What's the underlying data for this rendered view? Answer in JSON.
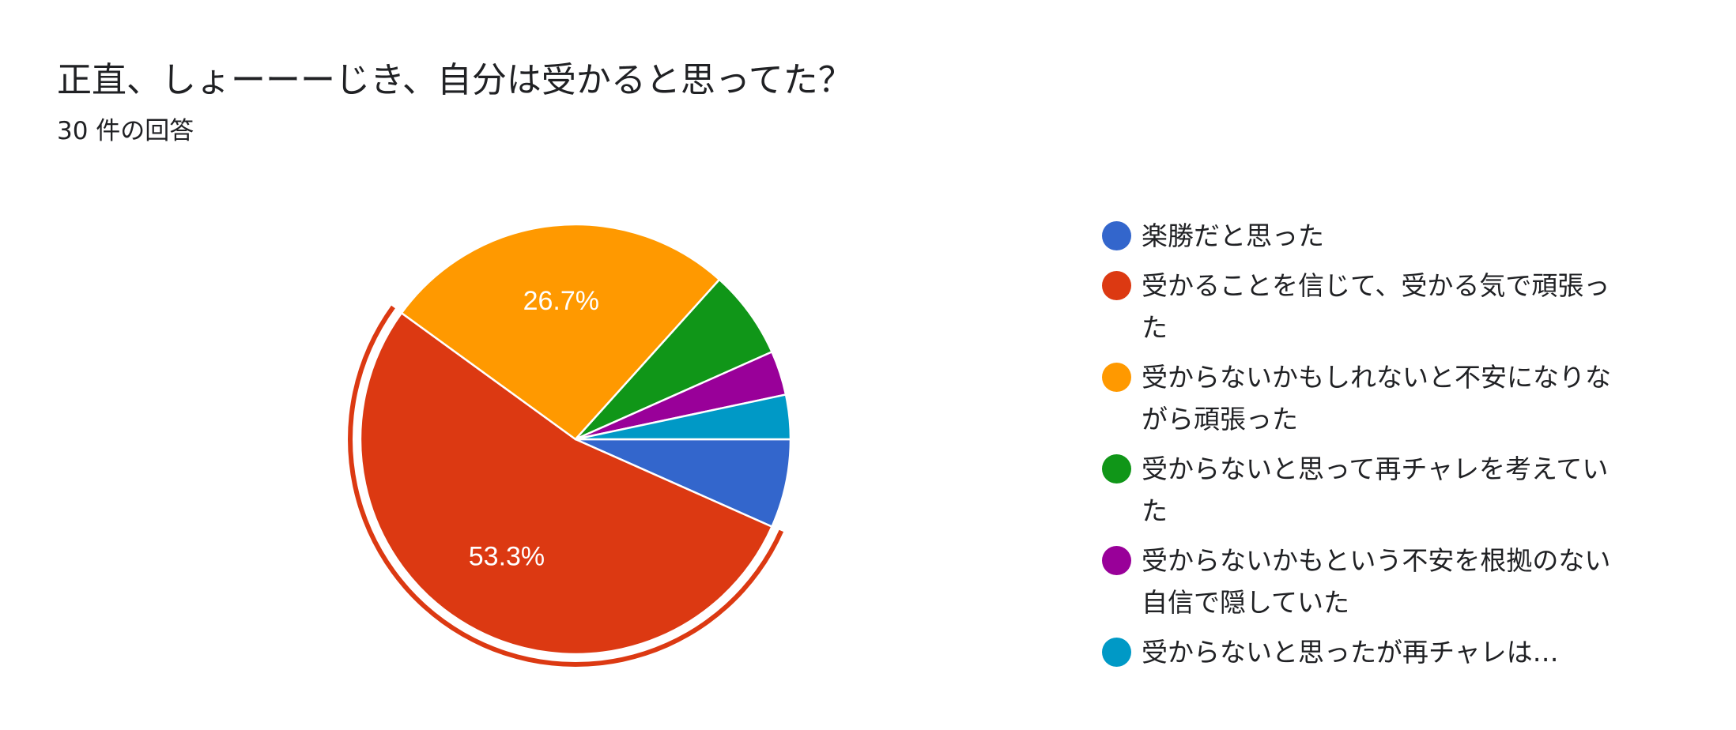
{
  "header": {
    "title": "正直、しょーーーじき、自分は受かると思ってた？",
    "response_count": "30 件の回答"
  },
  "chart_data": {
    "type": "pie",
    "total": 30,
    "slices": [
      {
        "label": "楽勝だと思った",
        "count": 2,
        "percent": 6.7,
        "color": "#3366cc",
        "show_label": false,
        "highlighted": false
      },
      {
        "label": "受かることを信じて、受かる気で頑張った",
        "count": 16,
        "percent": 53.3,
        "color": "#dc3912",
        "show_label": true,
        "display_label": "53.3%",
        "highlighted": true
      },
      {
        "label": "受からないかもしれないと不安になりながら頑張った",
        "count": 8,
        "percent": 26.7,
        "color": "#ff9900",
        "show_label": true,
        "display_label": "26.7%",
        "highlighted": false
      },
      {
        "label": "受からないと思って再チャレを考えていた",
        "count": 2,
        "percent": 6.7,
        "color": "#109618",
        "show_label": false,
        "highlighted": false
      },
      {
        "label": "受からないかもという不安を根拠のない自信で隠していた",
        "count": 1,
        "percent": 3.3,
        "color": "#990099",
        "show_label": false,
        "highlighted": false
      },
      {
        "label": "受からないと思ったが再チャレは…",
        "count": 1,
        "percent": 3.3,
        "color": "#0099c6",
        "show_label": false,
        "highlighted": false
      }
    ],
    "start": "3 o'clock",
    "direction": "clockwise",
    "legend_position": "right"
  }
}
